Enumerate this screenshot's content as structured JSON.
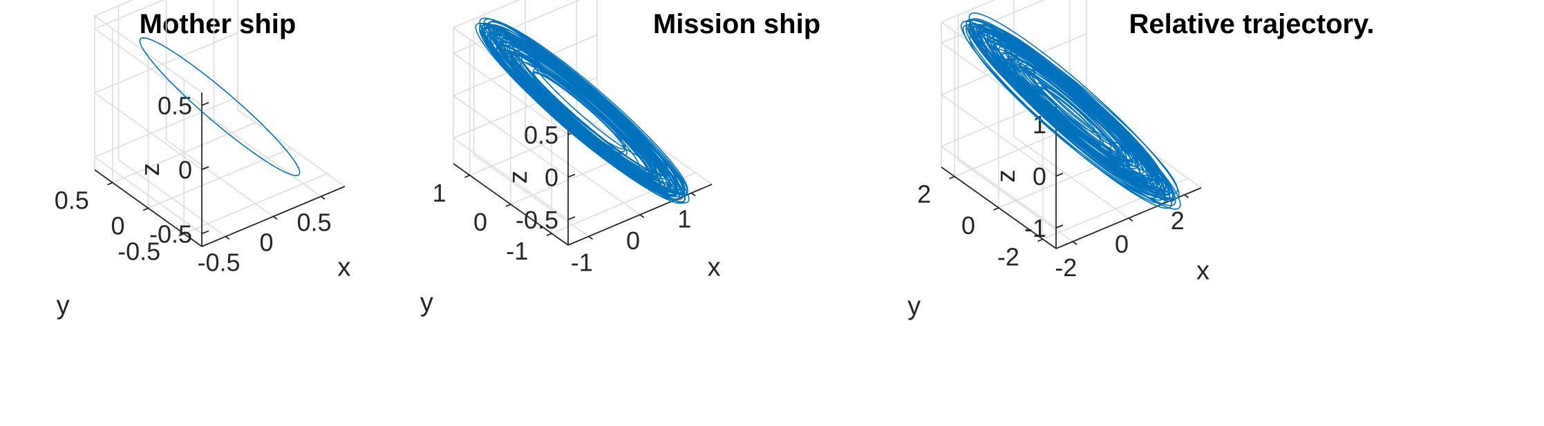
{
  "chart_data": [
    {
      "type": "line3d",
      "title": "Mother ship",
      "xlabel": "x",
      "ylabel": "y",
      "zlabel": "z",
      "xlim": [
        -0.75,
        0.75
      ],
      "ylim": [
        -0.75,
        0.75
      ],
      "zlim": [
        -0.6,
        0.6
      ],
      "xticks": [
        -0.5,
        0,
        0.5
      ],
      "xtick_labels": [
        "-0.5",
        "0",
        "0.5"
      ],
      "yticks": [
        -0.5,
        0,
        0.5
      ],
      "ytick_labels": [
        "-0.5",
        "0",
        "0.5"
      ],
      "zticks": [
        -0.5,
        0,
        0.5
      ],
      "ztick_labels": [
        "-0.5",
        "0",
        "0.5"
      ],
      "grid": true,
      "series": [
        {
          "kind": "ellipse",
          "color": "#0072BD",
          "a": 0.78,
          "b": 0.48,
          "inner": 0,
          "loops": 1,
          "jitter": 0
        }
      ]
    },
    {
      "type": "line3d",
      "title": "Mission ship",
      "xlabel": "x",
      "ylabel": "y",
      "zlabel": "z",
      "xlim": [
        -1.4,
        1.4
      ],
      "ylim": [
        -1.4,
        1.4
      ],
      "zlim": [
        -0.8,
        0.8
      ],
      "xticks": [
        -1,
        0,
        1
      ],
      "xtick_labels": [
        "-1",
        "0",
        "1"
      ],
      "yticks": [
        -1,
        0,
        1
      ],
      "ytick_labels": [
        "-1",
        "0",
        "1"
      ],
      "zticks": [
        -0.5,
        0,
        0.5
      ],
      "ztick_labels": [
        "-0.5",
        "0",
        "0.5"
      ],
      "grid": true,
      "series": [
        {
          "kind": "annulus",
          "color": "#0072BD",
          "a": 1.0,
          "b": 0.63,
          "inner": 0.4,
          "loops": 60,
          "jitter": 0.08
        }
      ]
    },
    {
      "type": "line3d",
      "title": "Relative trajectory.",
      "xlabel": "x",
      "ylabel": "y",
      "zlabel": "z",
      "xlim": [
        -2.6,
        2.6
      ],
      "ylim": [
        -2.6,
        2.6
      ],
      "zlim": [
        -1.4,
        1.4
      ],
      "xticks": [
        -2,
        0,
        2
      ],
      "xtick_labels": [
        "-2",
        "0",
        "2"
      ],
      "yticks": [
        -2,
        0,
        2
      ],
      "ytick_labels": [
        "-2",
        "0",
        "2"
      ],
      "zticks": [
        -1,
        0,
        1
      ],
      "ztick_labels": [
        "-1",
        "0",
        "1"
      ],
      "grid": true,
      "series": [
        {
          "kind": "filled",
          "color": "#0072BD",
          "a": 1.0,
          "b": 0.65,
          "inner": 0.0,
          "loops": 70,
          "jitter": 0.06
        }
      ]
    }
  ]
}
